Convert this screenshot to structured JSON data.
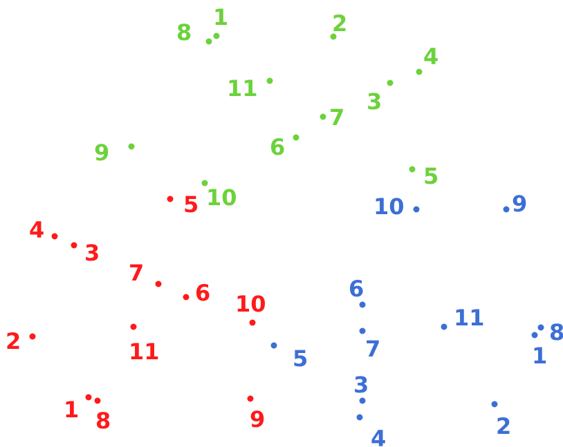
{
  "colors": {
    "green": "#6cd23c",
    "red": "#ff1a1a",
    "blue": "#3c6fd6"
  },
  "groups": [
    {
      "color_key": "green",
      "points": [
        {
          "label": "1"
        },
        {
          "label": "2"
        },
        {
          "label": "3"
        },
        {
          "label": "4"
        },
        {
          "label": "5"
        },
        {
          "label": "6"
        },
        {
          "label": "7"
        },
        {
          "label": "8"
        },
        {
          "label": "9"
        },
        {
          "label": "10"
        },
        {
          "label": "11"
        }
      ]
    },
    {
      "color_key": "red",
      "points": [
        {
          "label": "1"
        },
        {
          "label": "2"
        },
        {
          "label": "3"
        },
        {
          "label": "4"
        },
        {
          "label": "5"
        },
        {
          "label": "6"
        },
        {
          "label": "7"
        },
        {
          "label": "8"
        },
        {
          "label": "9"
        },
        {
          "label": "10"
        },
        {
          "label": "11"
        }
      ]
    },
    {
      "color_key": "blue",
      "points": [
        {
          "label": "1"
        },
        {
          "label": "2"
        },
        {
          "label": "3"
        },
        {
          "label": "4"
        },
        {
          "label": "5"
        },
        {
          "label": "6"
        },
        {
          "label": "7"
        },
        {
          "label": "8"
        },
        {
          "label": "9"
        },
        {
          "label": "10"
        },
        {
          "label": "11"
        }
      ]
    }
  ]
}
